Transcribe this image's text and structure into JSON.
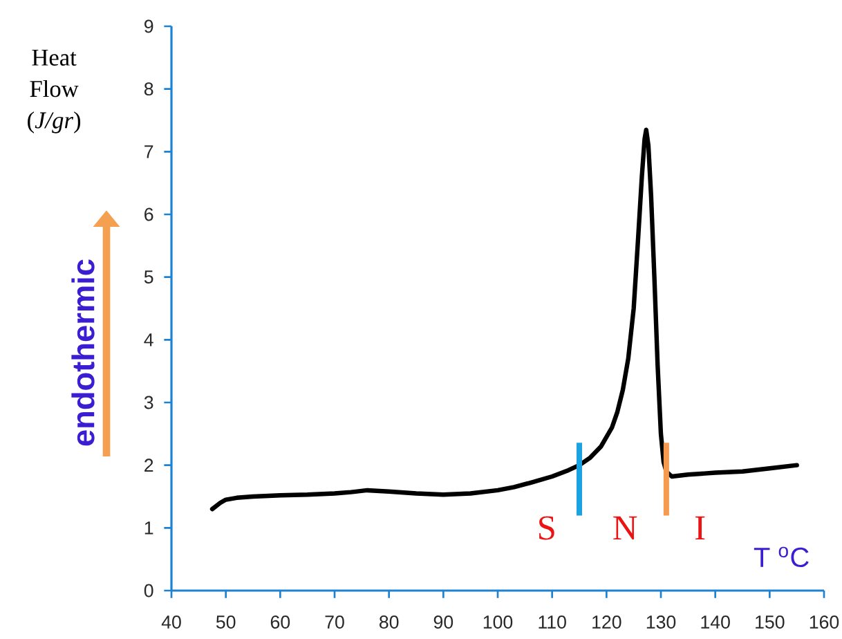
{
  "chart_data": {
    "type": "line",
    "xlabel": "T $^{o}$C",
    "ylabel": "Heat Flow (*J/gr*)",
    "xlim": [
      40,
      160
    ],
    "ylim": [
      0,
      9
    ],
    "xticks": [
      40,
      50,
      60,
      70,
      80,
      90,
      100,
      110,
      120,
      130,
      140,
      150,
      160
    ],
    "yticks": [
      0,
      1,
      2,
      3,
      4,
      5,
      6,
      7,
      8,
      9
    ],
    "grid": false,
    "marker": "none",
    "line_style": "solid",
    "series": [
      {
        "color": "#000000",
        "x": [
          47.5,
          49,
          50,
          52,
          55,
          60,
          65,
          70,
          73,
          76,
          80,
          85,
          90,
          95,
          100,
          103,
          106,
          110,
          113,
          115,
          117,
          119,
          120,
          121,
          122,
          123,
          124,
          125,
          125.8,
          126.5,
          127,
          127.3,
          127.7,
          128.2,
          128.8,
          129.4,
          130,
          130.5,
          131,
          132,
          135,
          140,
          145,
          150,
          155
        ],
        "values": [
          1.3,
          1.4,
          1.45,
          1.48,
          1.5,
          1.52,
          1.53,
          1.55,
          1.57,
          1.6,
          1.58,
          1.55,
          1.53,
          1.55,
          1.6,
          1.65,
          1.72,
          1.82,
          1.92,
          2.0,
          2.12,
          2.3,
          2.45,
          2.6,
          2.85,
          3.2,
          3.7,
          4.5,
          5.6,
          6.6,
          7.2,
          7.35,
          7.1,
          6.3,
          5.0,
          3.6,
          2.5,
          2.05,
          1.9,
          1.82,
          1.85,
          1.88,
          1.9,
          1.95,
          2.0
        ]
      }
    ],
    "ref_lines": [
      {
        "axis": "x",
        "value": 115,
        "color": "#1aa3e0"
      },
      {
        "axis": "x",
        "value": 131,
        "color": "#f59a4f"
      }
    ],
    "annotations": [
      "S",
      "N",
      "I",
      "endothermic"
    ]
  }
}
